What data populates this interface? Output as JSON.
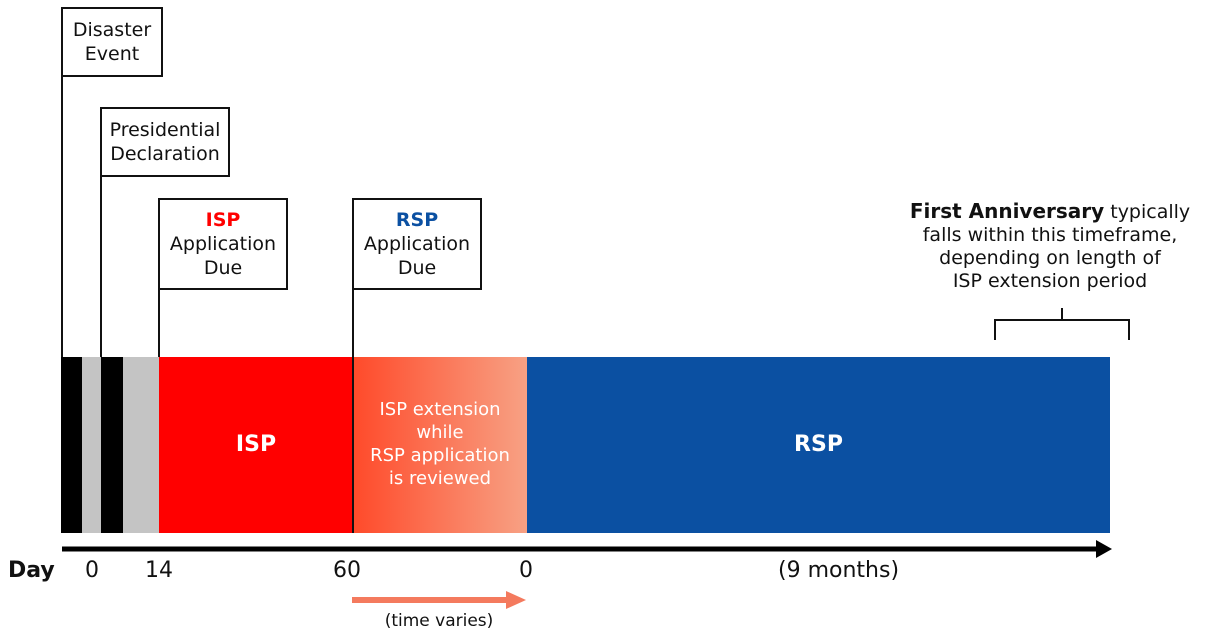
{
  "callouts": {
    "disaster": {
      "line1": "Disaster",
      "line2": "Event"
    },
    "declaration": {
      "line1": "Presidential",
      "line2": "Declaration"
    },
    "isp_due": {
      "program": "ISP",
      "line2": "Application",
      "line3": "Due"
    },
    "rsp_due": {
      "program": "RSP",
      "line2": "Application",
      "line3": "Due"
    }
  },
  "anniversary": {
    "bold": "First Anniversary",
    "rest1": " typically",
    "line2": "falls within this timeframe,",
    "line3": "depending on length of",
    "line4": "ISP extension period"
  },
  "segments": {
    "isp": "ISP",
    "extension": {
      "line1": "ISP extension",
      "line2": "while",
      "line3": "RSP application",
      "line4": "is reviewed"
    },
    "rsp": "RSP"
  },
  "axis": {
    "day_label": "Day",
    "ticks": [
      "0",
      "14",
      "60",
      "0",
      "(9 months)"
    ],
    "time_varies": "(time varies)"
  },
  "colors": {
    "isp": "#ff0000",
    "rsp": "#0b50a2",
    "extension_start": "#ff4a2a",
    "extension_end": "#f7a184",
    "gray": "#c4c4c4",
    "black": "#000000",
    "arrow_orange": "#f47a5e"
  }
}
